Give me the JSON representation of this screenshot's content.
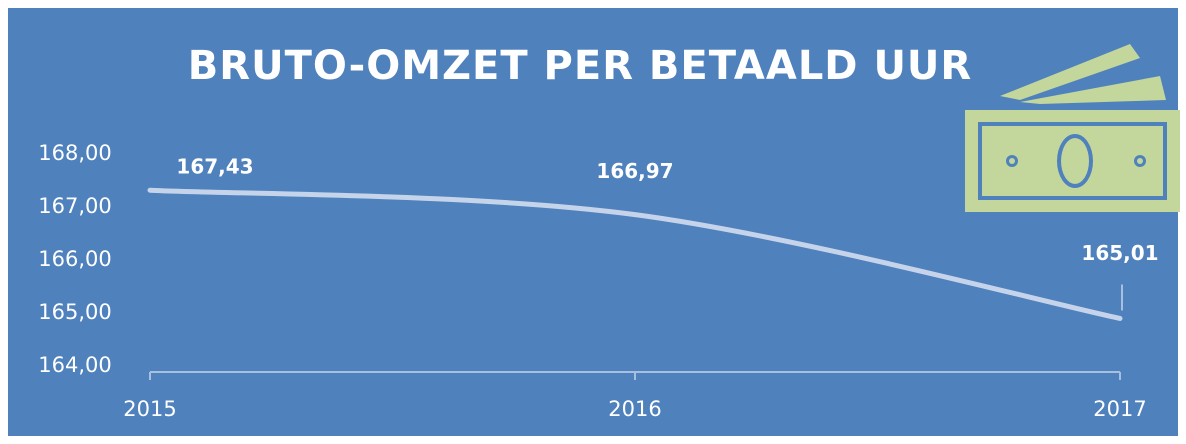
{
  "chart_data": {
    "type": "line",
    "title": "BRUTO-OMZET PER BETAALD UUR",
    "categories": [
      "2015",
      "2016",
      "2017"
    ],
    "series": [
      {
        "name": "Bruto-omzet per betaald uur",
        "color": "#c5d4ea",
        "values": [
          167.43,
          166.97,
          165.01
        ],
        "value_labels": [
          "167,43",
          "166,97",
          "165,01"
        ]
      }
    ],
    "ylim": [
      164,
      168
    ],
    "yticks": [
      {
        "value": 164,
        "label": "164,00"
      },
      {
        "value": 165,
        "label": "165,00"
      },
      {
        "value": 166,
        "label": "166,00"
      },
      {
        "value": 167,
        "label": "167,00"
      },
      {
        "value": 168,
        "label": "168,00"
      }
    ],
    "smooth": true,
    "grid": false
  }
}
